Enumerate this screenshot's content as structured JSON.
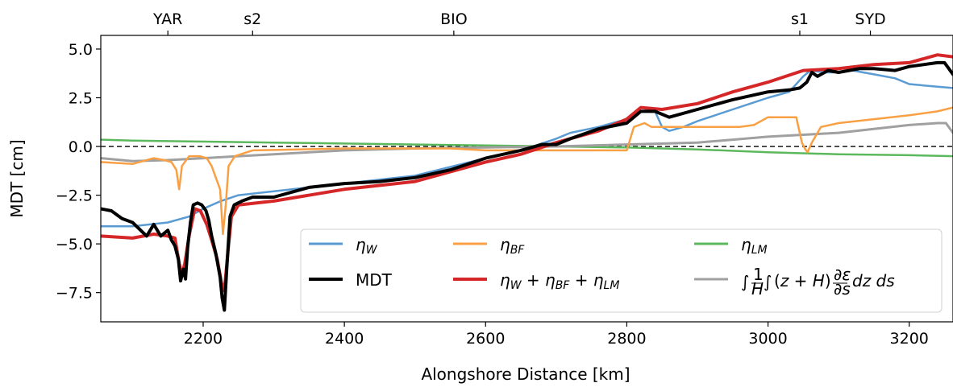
{
  "chart_data": {
    "type": "line",
    "xlabel": "Alongshore Distance [km]",
    "ylabel": "MDT [cm]",
    "xlim": [
      2055,
      3262
    ],
    "ylim": [
      -9.0,
      5.7
    ],
    "xticks": [
      2200,
      2400,
      2600,
      2800,
      3000,
      3200
    ],
    "yticks": [
      -7.5,
      -5.0,
      -2.5,
      0.0,
      2.5,
      5.0
    ],
    "ytick_labels": [
      "−7.5",
      "−5.0",
      "−2.5",
      "0.0",
      "2.5",
      "5.0"
    ],
    "top_axis": {
      "ticks": [
        {
          "label": "YAR",
          "x": 2150
        },
        {
          "label": "s2",
          "x": 2270
        },
        {
          "label": "BIO",
          "x": 2555
        },
        {
          "label": "s1",
          "x": 3045
        },
        {
          "label": "SYD",
          "x": 3145
        }
      ]
    },
    "reference_line": {
      "y": 0.0,
      "style": "dashed",
      "color": "#000000"
    },
    "legend_placement": "lower-right",
    "series": [
      {
        "name": "η_W",
        "color": "#5a9bd4",
        "points": [
          [
            2055,
            -4.1
          ],
          [
            2100,
            -4.1
          ],
          [
            2150,
            -3.9
          ],
          [
            2180,
            -3.6
          ],
          [
            2200,
            -3.2
          ],
          [
            2225,
            -2.8
          ],
          [
            2250,
            -2.5
          ],
          [
            2300,
            -2.3
          ],
          [
            2400,
            -1.9
          ],
          [
            2500,
            -1.5
          ],
          [
            2600,
            -0.6
          ],
          [
            2650,
            -0.2
          ],
          [
            2700,
            0.4
          ],
          [
            2720,
            0.7
          ],
          [
            2760,
            1.0
          ],
          [
            2800,
            1.4
          ],
          [
            2820,
            2.0
          ],
          [
            2840,
            1.8
          ],
          [
            2850,
            1.0
          ],
          [
            2860,
            0.8
          ],
          [
            2880,
            1.0
          ],
          [
            2900,
            1.3
          ],
          [
            2950,
            1.9
          ],
          [
            3000,
            2.5
          ],
          [
            3030,
            2.8
          ],
          [
            3050,
            3.6
          ],
          [
            3060,
            3.9
          ],
          [
            3080,
            3.8
          ],
          [
            3100,
            3.8
          ],
          [
            3120,
            3.9
          ],
          [
            3150,
            3.7
          ],
          [
            3180,
            3.5
          ],
          [
            3200,
            3.2
          ],
          [
            3230,
            3.1
          ],
          [
            3262,
            3.0
          ]
        ]
      },
      {
        "name": "MDT",
        "color": "#000000",
        "points": [
          [
            2055,
            -3.2
          ],
          [
            2070,
            -3.3
          ],
          [
            2085,
            -3.7
          ],
          [
            2100,
            -3.9
          ],
          [
            2120,
            -4.6
          ],
          [
            2130,
            -4.0
          ],
          [
            2140,
            -4.6
          ],
          [
            2150,
            -4.3
          ],
          [
            2155,
            -4.8
          ],
          [
            2160,
            -5.1
          ],
          [
            2165,
            -5.8
          ],
          [
            2168,
            -6.9
          ],
          [
            2172,
            -6.3
          ],
          [
            2175,
            -6.8
          ],
          [
            2178,
            -5.2
          ],
          [
            2182,
            -3.9
          ],
          [
            2186,
            -3.0
          ],
          [
            2192,
            -2.9
          ],
          [
            2198,
            -3.0
          ],
          [
            2204,
            -3.3
          ],
          [
            2208,
            -3.8
          ],
          [
            2212,
            -4.6
          ],
          [
            2218,
            -5.5
          ],
          [
            2224,
            -6.7
          ],
          [
            2227,
            -7.8
          ],
          [
            2230,
            -8.4
          ],
          [
            2233,
            -6.5
          ],
          [
            2238,
            -3.6
          ],
          [
            2244,
            -3.0
          ],
          [
            2255,
            -2.8
          ],
          [
            2270,
            -2.6
          ],
          [
            2300,
            -2.6
          ],
          [
            2350,
            -2.1
          ],
          [
            2400,
            -1.9
          ],
          [
            2450,
            -1.8
          ],
          [
            2500,
            -1.6
          ],
          [
            2550,
            -1.2
          ],
          [
            2600,
            -0.6
          ],
          [
            2650,
            -0.2
          ],
          [
            2680,
            0.1
          ],
          [
            2700,
            0.1
          ],
          [
            2720,
            0.4
          ],
          [
            2760,
            0.9
          ],
          [
            2800,
            1.2
          ],
          [
            2820,
            1.8
          ],
          [
            2840,
            1.8
          ],
          [
            2860,
            1.5
          ],
          [
            2900,
            1.9
          ],
          [
            2950,
            2.4
          ],
          [
            3000,
            2.8
          ],
          [
            3030,
            2.9
          ],
          [
            3045,
            3.0
          ],
          [
            3055,
            3.3
          ],
          [
            3062,
            3.8
          ],
          [
            3070,
            3.6
          ],
          [
            3085,
            3.9
          ],
          [
            3100,
            3.8
          ],
          [
            3130,
            4.0
          ],
          [
            3150,
            4.0
          ],
          [
            3180,
            3.9
          ],
          [
            3200,
            4.1
          ],
          [
            3220,
            4.2
          ],
          [
            3240,
            4.3
          ],
          [
            3250,
            4.3
          ],
          [
            3262,
            3.7
          ]
        ]
      },
      {
        "name": "η_BF",
        "color": "#f9a045",
        "points": [
          [
            2055,
            -0.8
          ],
          [
            2100,
            -0.9
          ],
          [
            2130,
            -0.6
          ],
          [
            2145,
            -0.7
          ],
          [
            2155,
            -0.8
          ],
          [
            2162,
            -1.2
          ],
          [
            2166,
            -2.2
          ],
          [
            2170,
            -1.0
          ],
          [
            2180,
            -0.5
          ],
          [
            2195,
            -0.5
          ],
          [
            2205,
            -0.6
          ],
          [
            2212,
            -1.0
          ],
          [
            2218,
            -1.6
          ],
          [
            2224,
            -2.2
          ],
          [
            2228,
            -4.5
          ],
          [
            2232,
            -3.0
          ],
          [
            2236,
            -1.0
          ],
          [
            2245,
            -0.5
          ],
          [
            2270,
            -0.2
          ],
          [
            2400,
            -0.1
          ],
          [
            2550,
            -0.1
          ],
          [
            2600,
            -0.2
          ],
          [
            2700,
            -0.2
          ],
          [
            2750,
            -0.2
          ],
          [
            2800,
            -0.2
          ],
          [
            2810,
            1.0
          ],
          [
            2825,
            1.2
          ],
          [
            2835,
            1.0
          ],
          [
            2845,
            1.0
          ],
          [
            2860,
            1.0
          ],
          [
            2900,
            1.0
          ],
          [
            2960,
            1.0
          ],
          [
            2980,
            1.1
          ],
          [
            3000,
            1.5
          ],
          [
            3030,
            1.5
          ],
          [
            3040,
            1.5
          ],
          [
            3048,
            0.2
          ],
          [
            3052,
            -0.1
          ],
          [
            3056,
            -0.3
          ],
          [
            3062,
            0.2
          ],
          [
            3075,
            1.0
          ],
          [
            3100,
            1.2
          ],
          [
            3150,
            1.4
          ],
          [
            3200,
            1.6
          ],
          [
            3240,
            1.8
          ],
          [
            3262,
            2.0
          ]
        ]
      },
      {
        "name": "η_W + η_BF + η_LM",
        "color": "#d62728",
        "points": [
          [
            2055,
            -4.6
          ],
          [
            2100,
            -4.7
          ],
          [
            2130,
            -4.5
          ],
          [
            2150,
            -4.6
          ],
          [
            2160,
            -4.7
          ],
          [
            2166,
            -6.0
          ],
          [
            2170,
            -6.6
          ],
          [
            2174,
            -6.0
          ],
          [
            2180,
            -4.6
          ],
          [
            2188,
            -3.2
          ],
          [
            2196,
            -3.3
          ],
          [
            2205,
            -4.0
          ],
          [
            2212,
            -4.8
          ],
          [
            2220,
            -5.8
          ],
          [
            2226,
            -7.0
          ],
          [
            2230,
            -7.4
          ],
          [
            2234,
            -5.8
          ],
          [
            2240,
            -3.6
          ],
          [
            2250,
            -3.0
          ],
          [
            2300,
            -2.8
          ],
          [
            2400,
            -2.2
          ],
          [
            2500,
            -1.8
          ],
          [
            2600,
            -0.8
          ],
          [
            2650,
            -0.4
          ],
          [
            2700,
            0.2
          ],
          [
            2760,
            0.8
          ],
          [
            2800,
            1.4
          ],
          [
            2820,
            2.0
          ],
          [
            2850,
            1.9
          ],
          [
            2900,
            2.2
          ],
          [
            2950,
            2.8
          ],
          [
            3000,
            3.3
          ],
          [
            3050,
            3.9
          ],
          [
            3100,
            4.0
          ],
          [
            3150,
            4.2
          ],
          [
            3200,
            4.3
          ],
          [
            3240,
            4.7
          ],
          [
            3262,
            4.6
          ]
        ]
      },
      {
        "name": "η_LM",
        "color": "#5cb85c",
        "points": [
          [
            2055,
            0.35
          ],
          [
            2100,
            0.3
          ],
          [
            2200,
            0.25
          ],
          [
            2300,
            0.2
          ],
          [
            2400,
            0.15
          ],
          [
            2500,
            0.1
          ],
          [
            2600,
            0.05
          ],
          [
            2700,
            0.0
          ],
          [
            2800,
            -0.05
          ],
          [
            2900,
            -0.15
          ],
          [
            3000,
            -0.3
          ],
          [
            3100,
            -0.4
          ],
          [
            3200,
            -0.45
          ],
          [
            3262,
            -0.5
          ]
        ]
      },
      {
        "name": "∫(1/H)∫(z+H)(∂ε/∂s) dz ds",
        "color": "#a0a0a0",
        "points": [
          [
            2055,
            -0.6
          ],
          [
            2100,
            -0.75
          ],
          [
            2150,
            -0.7
          ],
          [
            2200,
            -0.6
          ],
          [
            2250,
            -0.5
          ],
          [
            2300,
            -0.4
          ],
          [
            2400,
            -0.2
          ],
          [
            2500,
            -0.1
          ],
          [
            2600,
            -0.05
          ],
          [
            2700,
            0.0
          ],
          [
            2800,
            0.1
          ],
          [
            2900,
            0.2
          ],
          [
            2950,
            0.35
          ],
          [
            3000,
            0.5
          ],
          [
            3050,
            0.6
          ],
          [
            3100,
            0.7
          ],
          [
            3150,
            0.9
          ],
          [
            3200,
            1.1
          ],
          [
            3240,
            1.2
          ],
          [
            3252,
            1.2
          ],
          [
            3262,
            0.7
          ]
        ]
      }
    ]
  }
}
